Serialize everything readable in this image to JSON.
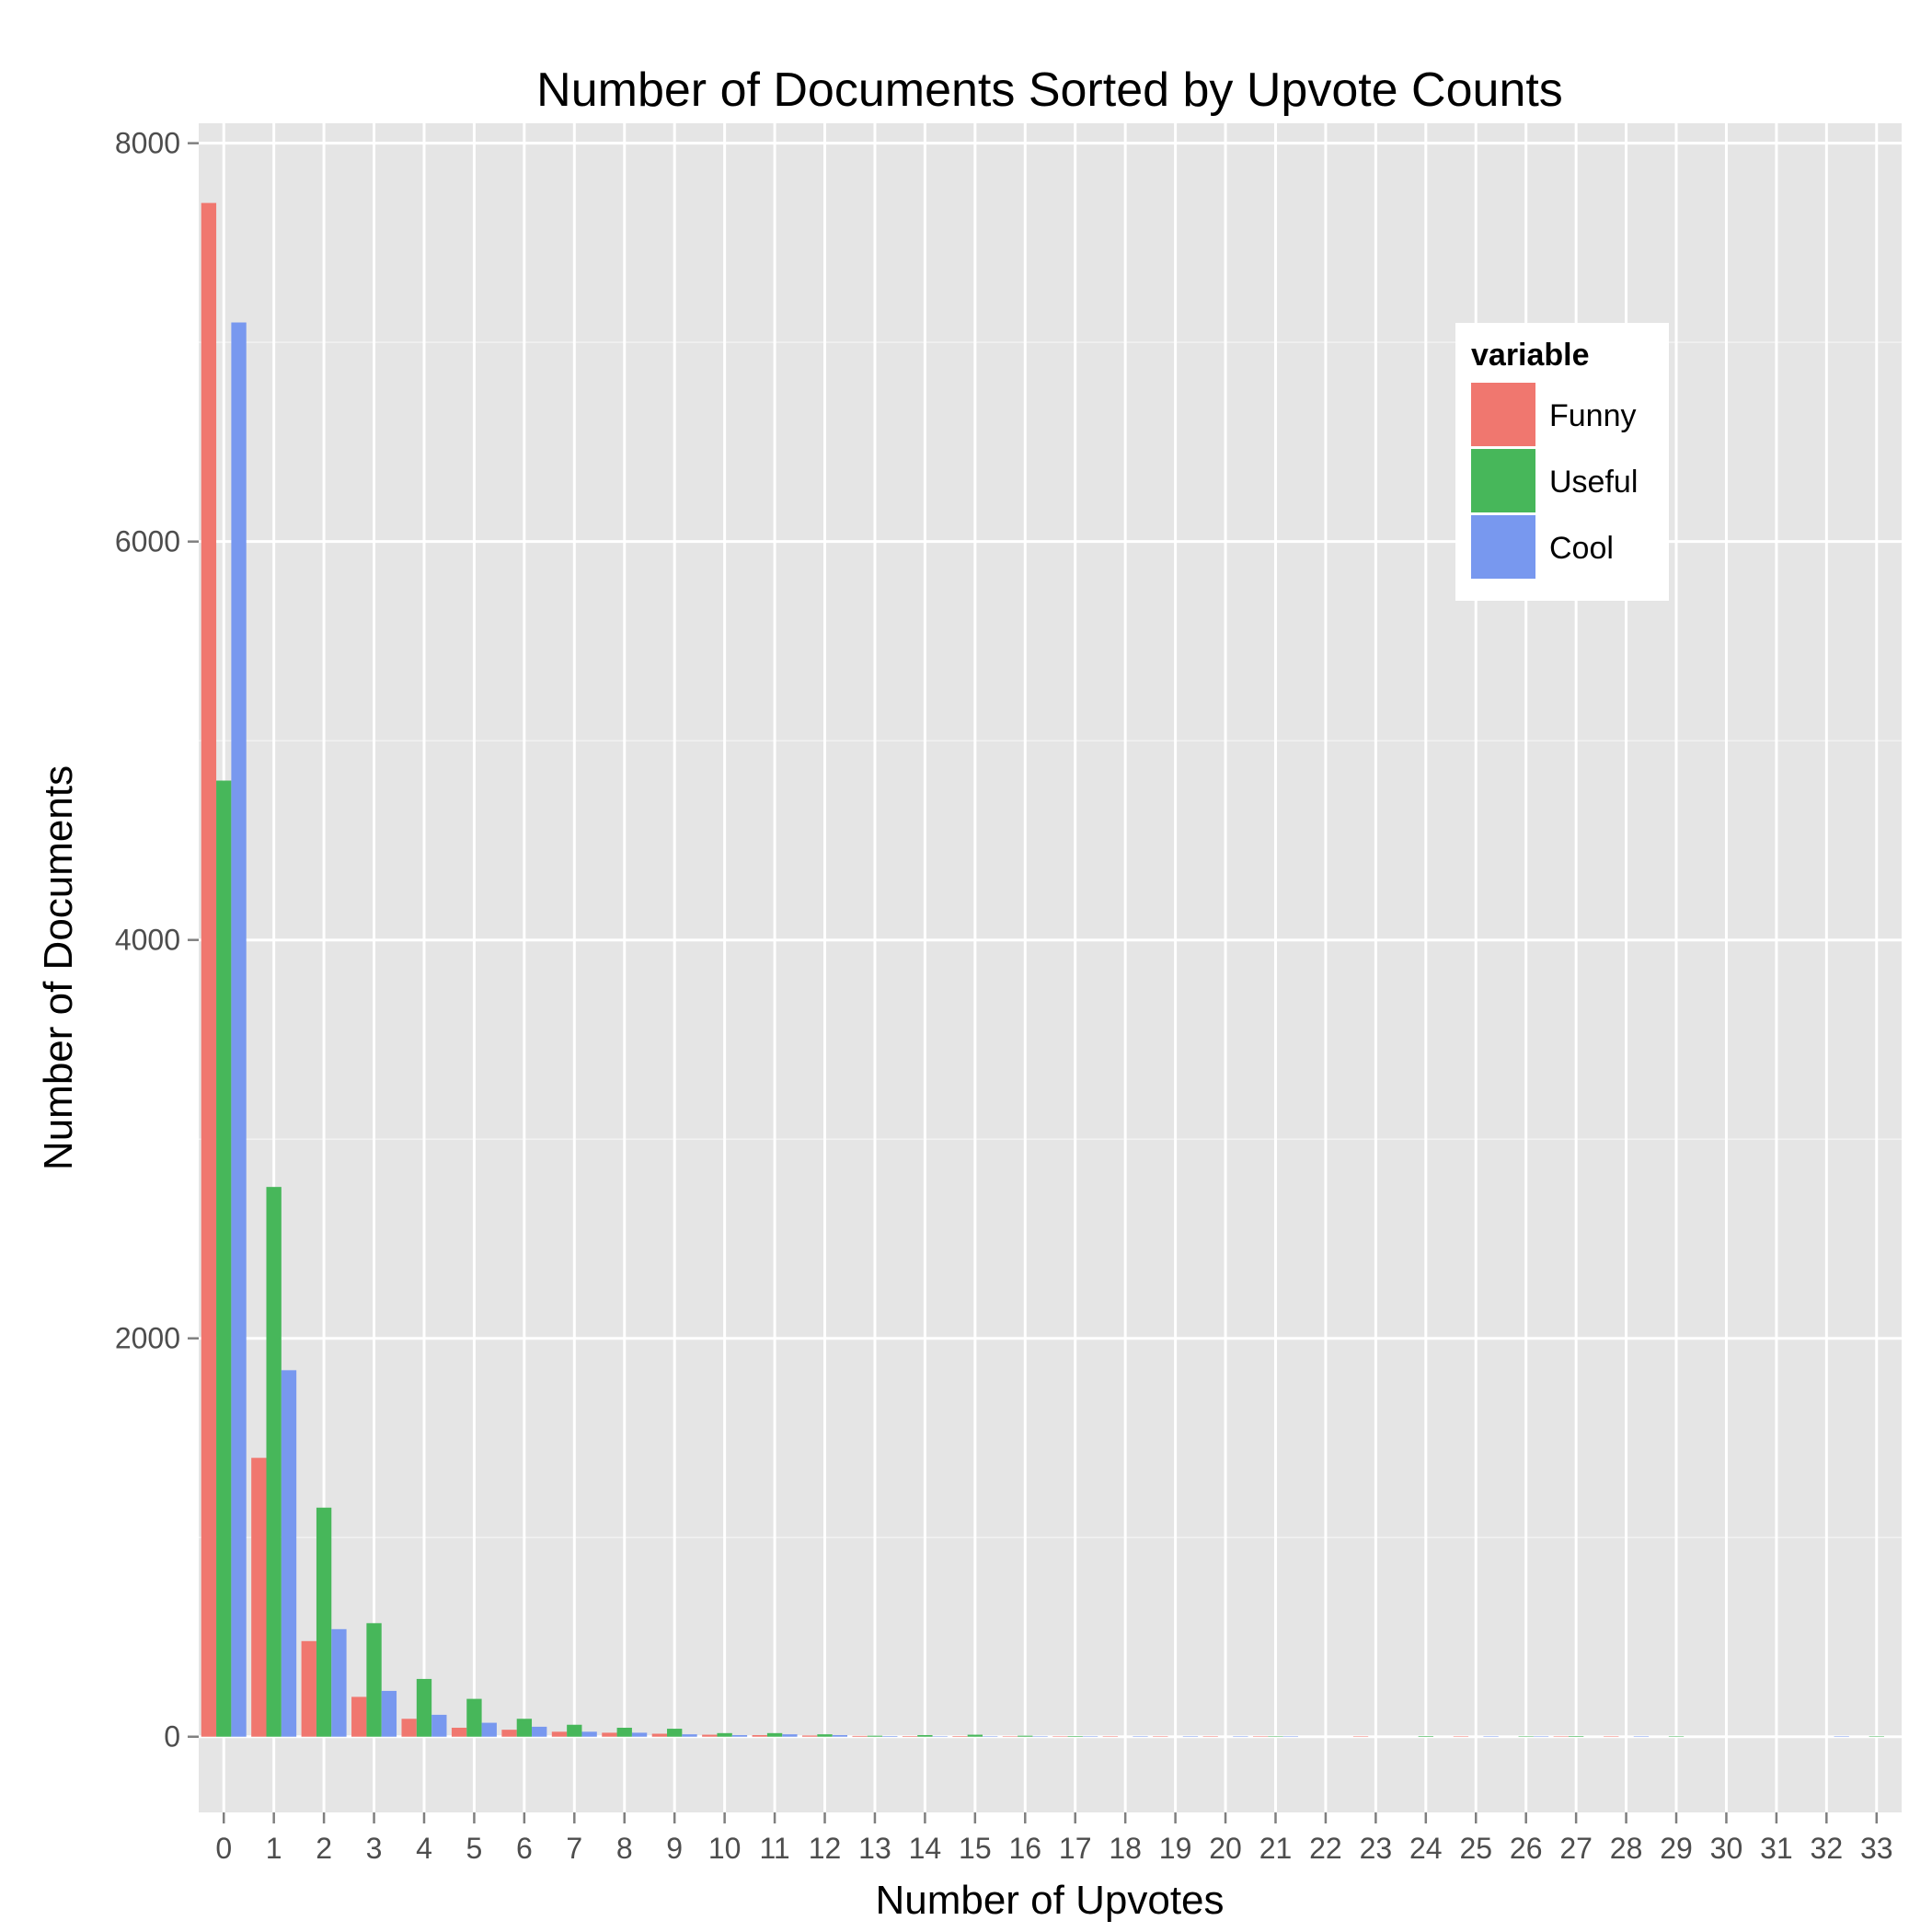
{
  "chart_data": {
    "type": "bar",
    "title": "Number of Documents Sorted by Upvote Counts",
    "xlabel": "Number of Upvotes",
    "ylabel": "Number of Documents",
    "categories": [
      "0",
      "1",
      "2",
      "3",
      "4",
      "5",
      "6",
      "7",
      "8",
      "9",
      "10",
      "11",
      "12",
      "13",
      "14",
      "15",
      "16",
      "17",
      "18",
      "19",
      "20",
      "21",
      "22",
      "23",
      "24",
      "25",
      "26",
      "27",
      "28",
      "29",
      "30",
      "31",
      "32",
      "33"
    ],
    "ylim": [
      -380,
      8100
    ],
    "yticks": [
      0,
      2000,
      4000,
      6000,
      8000
    ],
    "ytick_labels": [
      "0",
      "2000",
      "4000",
      "6000",
      "8000"
    ],
    "grid": true,
    "legend": {
      "title": "variable",
      "position": "top-right",
      "entries": [
        "Funny",
        "Useful",
        "Cool"
      ]
    },
    "series": [
      {
        "name": "Funny",
        "color": "#F0776F",
        "values": [
          7700,
          1400,
          480,
          200,
          90,
          45,
          35,
          25,
          20,
          15,
          10,
          8,
          6,
          4,
          3,
          3,
          2,
          2,
          2,
          2,
          2,
          2,
          0,
          1,
          0,
          1,
          0,
          1,
          1,
          0,
          0,
          0,
          0,
          0
        ]
      },
      {
        "name": "Useful",
        "color": "#47B75A",
        "values": [
          4800,
          2760,
          1150,
          570,
          290,
          190,
          90,
          60,
          45,
          40,
          18,
          18,
          12,
          5,
          8,
          10,
          5,
          3,
          0,
          0,
          0,
          2,
          0,
          0,
          3,
          0,
          2,
          3,
          0,
          2,
          0,
          0,
          0,
          2
        ]
      },
      {
        "name": "Cool",
        "color": "#7898EF",
        "values": [
          7100,
          1840,
          540,
          230,
          110,
          70,
          50,
          25,
          20,
          12,
          8,
          12,
          8,
          3,
          2,
          2,
          2,
          2,
          2,
          2,
          1,
          1,
          0,
          0,
          0,
          1,
          1,
          0,
          1,
          0,
          0,
          0,
          1,
          0
        ]
      }
    ]
  }
}
